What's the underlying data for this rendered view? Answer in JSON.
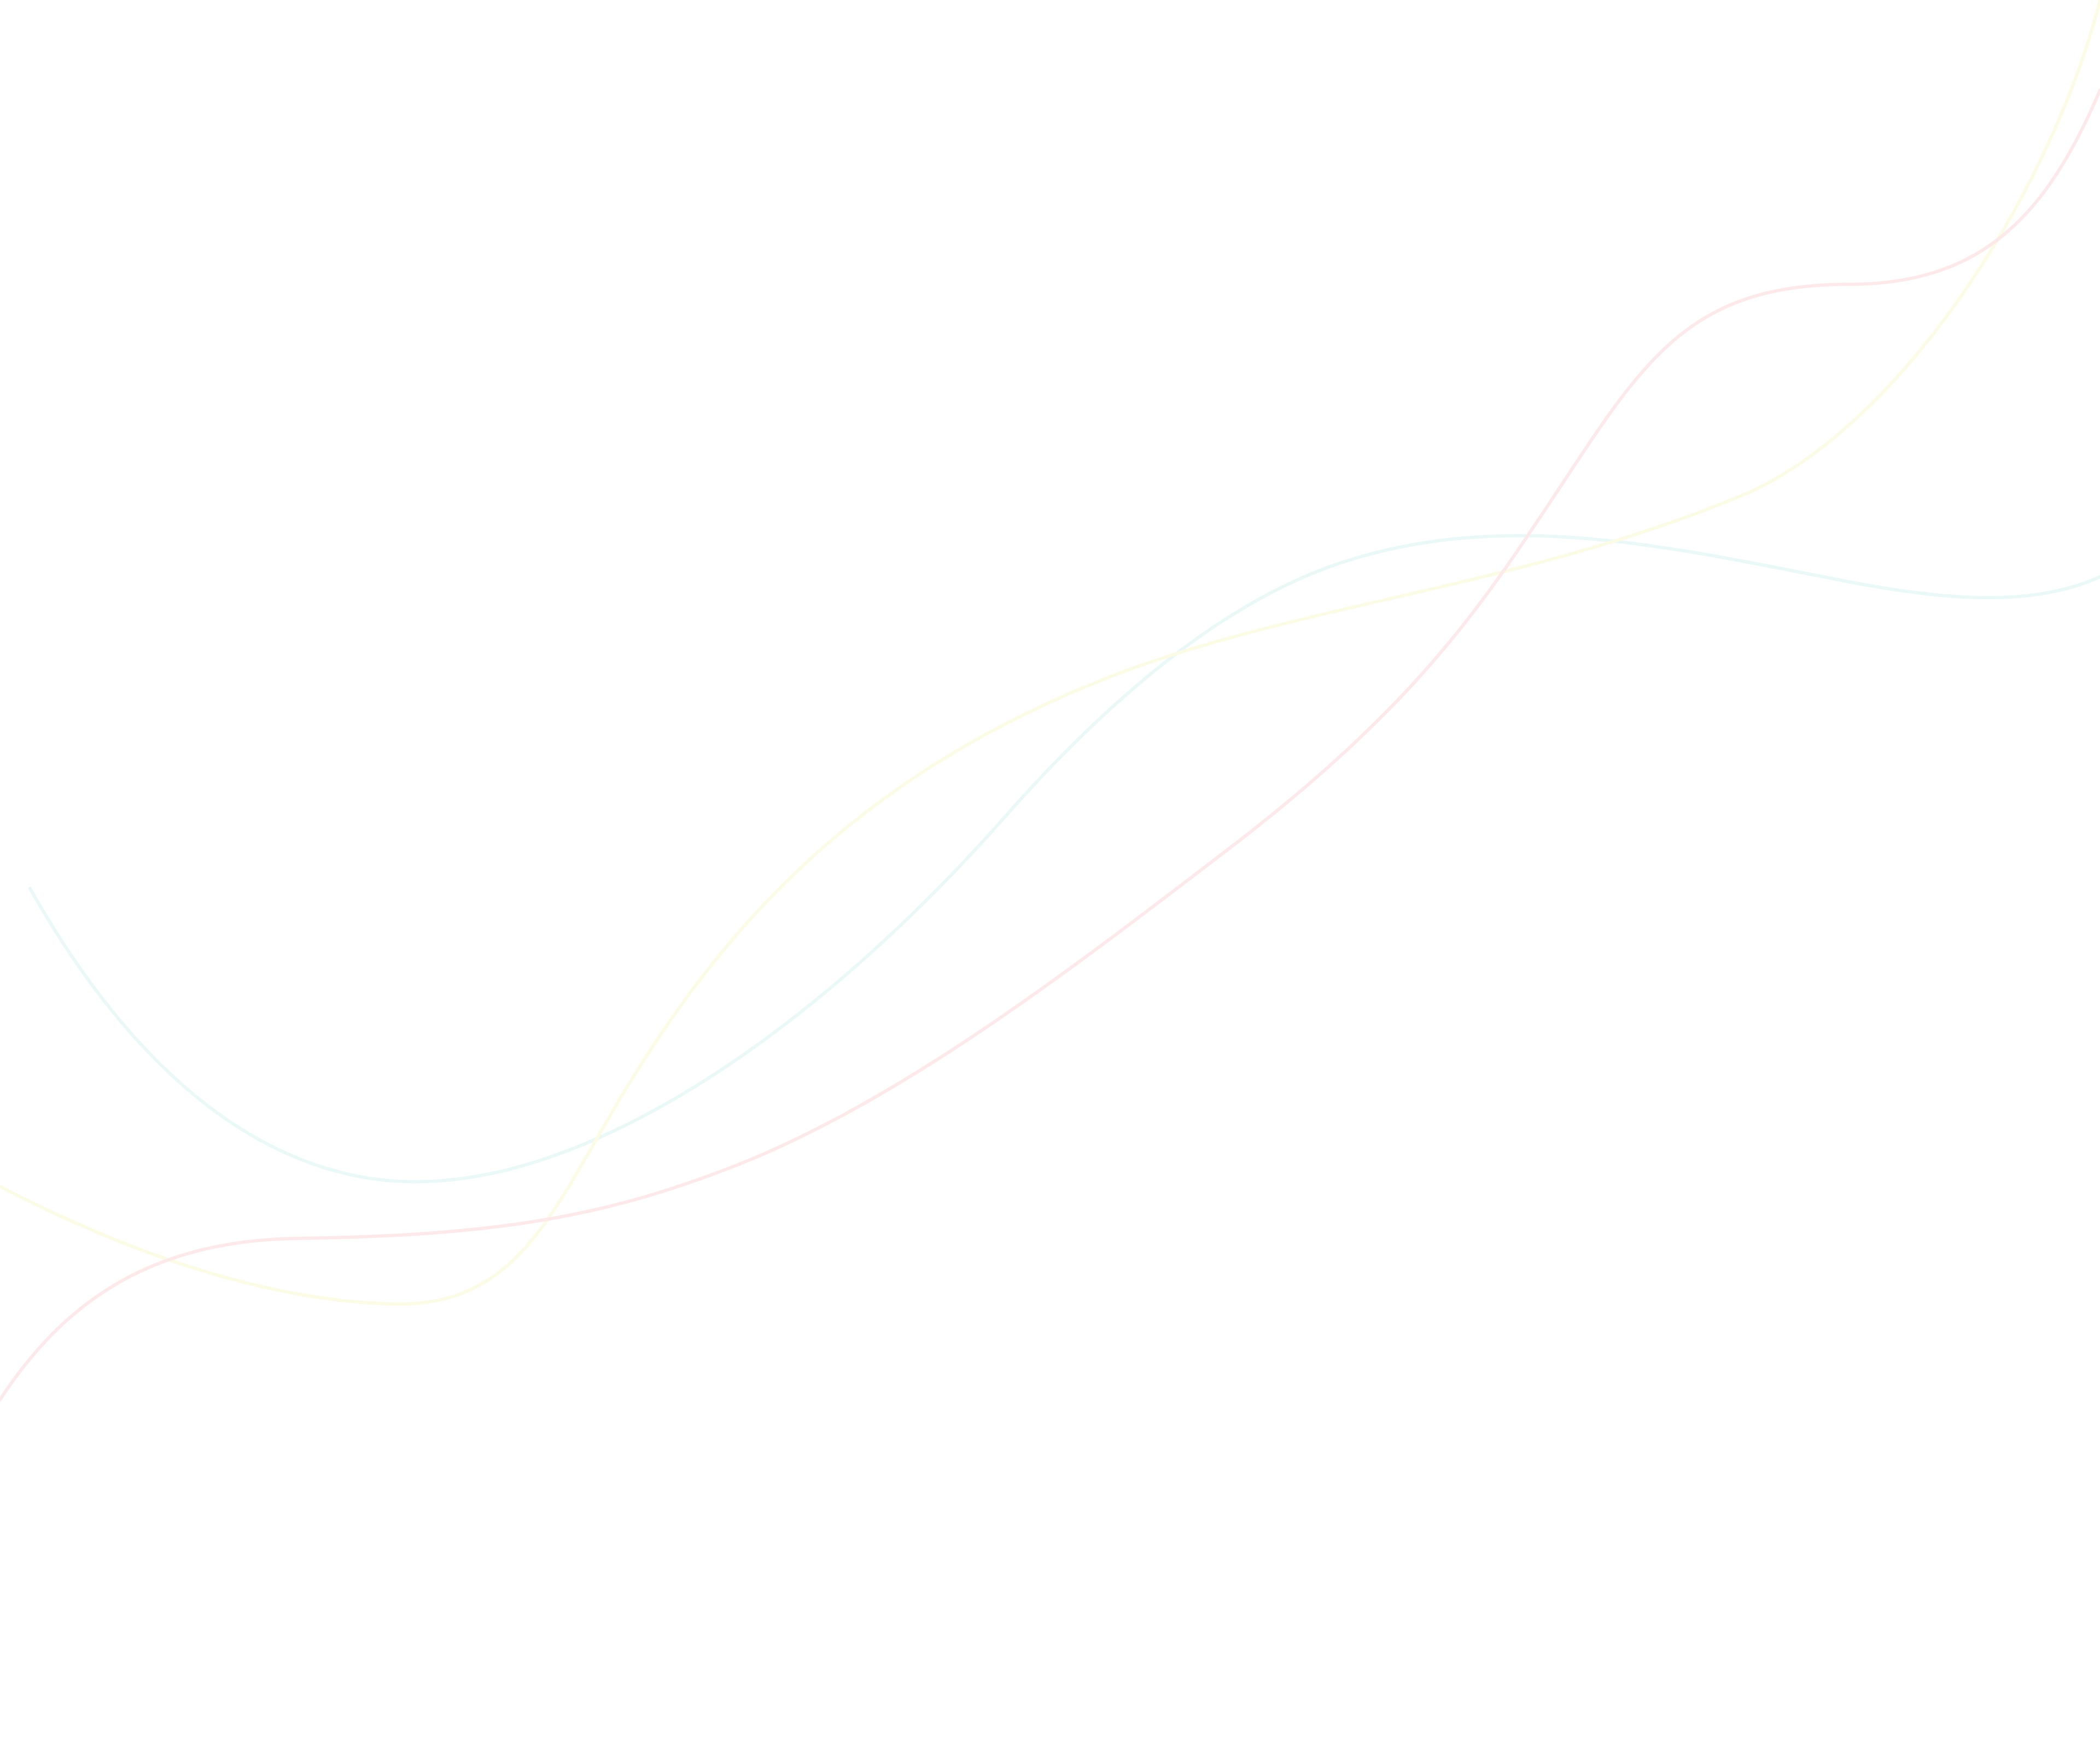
{
  "background": {
    "color": "#ffffff",
    "lines": [
      {
        "name": "cyan-wave-line",
        "color": "#eaf8f8"
      },
      {
        "name": "yellow-wave-line",
        "color": "#fbfbe6"
      },
      {
        "name": "pink-wave-line",
        "color": "#fde9ea"
      }
    ]
  }
}
